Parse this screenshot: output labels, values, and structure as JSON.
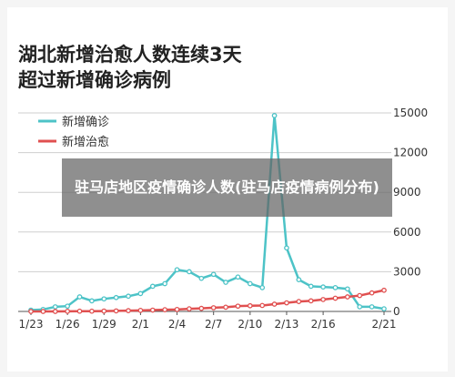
{
  "chart_data": {
    "type": "line",
    "title": "湖北新增治愈人数连续3天\n超过新增确诊病例",
    "x": [
      "1/23",
      "1/24",
      "1/25",
      "1/26",
      "1/27",
      "1/28",
      "1/29",
      "1/30",
      "1/31",
      "2/1",
      "2/2",
      "2/3",
      "2/4",
      "2/5",
      "2/6",
      "2/7",
      "2/8",
      "2/9",
      "2/10",
      "2/11",
      "2/12",
      "2/13",
      "2/14",
      "2/15",
      "2/16",
      "2/17",
      "2/18",
      "2/19",
      "2/20",
      "2/21"
    ],
    "x_ticks": [
      "1/23",
      "1/26",
      "1/29",
      "2/1",
      "2/4",
      "2/7",
      "2/10",
      "2/13",
      "2/16",
      "2/21"
    ],
    "y_ticks": [
      0,
      3000,
      6000,
      9000,
      12000,
      15000
    ],
    "ylim": [
      0,
      15000
    ],
    "y_axis_side": "right",
    "legend_position": "top-left",
    "series": [
      {
        "name": "新增确诊",
        "color": "#4dc3c7",
        "values": [
          100,
          150,
          350,
          400,
          1100,
          800,
          950,
          1050,
          1150,
          1350,
          1900,
          2100,
          3150,
          3000,
          2500,
          2800,
          2200,
          2600,
          2100,
          1800,
          14800,
          4800,
          2400,
          1900,
          1850,
          1800,
          1700,
          350,
          350,
          200
        ]
      },
      {
        "name": "新增治愈",
        "color": "#e05050",
        "values": [
          0,
          0,
          0,
          10,
          20,
          20,
          30,
          40,
          60,
          80,
          100,
          130,
          150,
          200,
          230,
          280,
          320,
          400,
          430,
          450,
          550,
          650,
          750,
          800,
          900,
          1000,
          1100,
          1200,
          1400,
          1600
        ]
      }
    ]
  },
  "overlay_text": "驻马店地区疫情确诊人数(驻马店疫情病例分布)"
}
